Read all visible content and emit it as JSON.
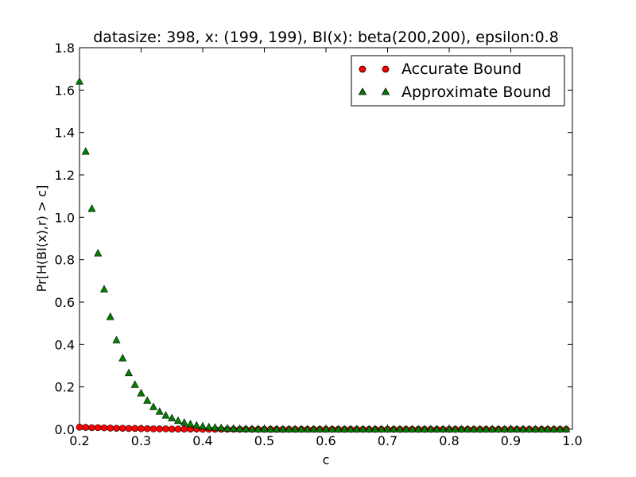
{
  "chart_data": {
    "type": "scatter",
    "title": "datasize: 398, x: (199, 199), BI(x): beta(200,200), epsilon:0.8",
    "xlabel": "c",
    "ylabel": "Pr[H(BI(x),r) > c]",
    "xlim": [
      0.2,
      1.0
    ],
    "ylim": [
      0.0,
      1.8
    ],
    "x_ticks": [
      "0.2",
      "0.3",
      "0.4",
      "0.5",
      "0.6",
      "0.7",
      "0.8",
      "0.9",
      "1.0"
    ],
    "y_ticks": [
      "0.0",
      "0.2",
      "0.4",
      "0.6",
      "0.8",
      "1.0",
      "1.2",
      "1.4",
      "1.6",
      "1.8"
    ],
    "grid": false,
    "legend_position": "top-right",
    "x": [
      0.2,
      0.21,
      0.22,
      0.23,
      0.24,
      0.25,
      0.26,
      0.27,
      0.28,
      0.29,
      0.3,
      0.31,
      0.32,
      0.33,
      0.34,
      0.35,
      0.36,
      0.37,
      0.38,
      0.39,
      0.4,
      0.41,
      0.42,
      0.43,
      0.44,
      0.45,
      0.46,
      0.47,
      0.48,
      0.49,
      0.5,
      0.51,
      0.52,
      0.53,
      0.54,
      0.55,
      0.56,
      0.57,
      0.58,
      0.59,
      0.6,
      0.61,
      0.62,
      0.63,
      0.64,
      0.65,
      0.66,
      0.67,
      0.68,
      0.69,
      0.7,
      0.71,
      0.72,
      0.73,
      0.74,
      0.75,
      0.76,
      0.77,
      0.78,
      0.79,
      0.8,
      0.81,
      0.82,
      0.83,
      0.84,
      0.85,
      0.86,
      0.87,
      0.88,
      0.89,
      0.9,
      0.91,
      0.92,
      0.93,
      0.94,
      0.95,
      0.96,
      0.97,
      0.98,
      0.99
    ],
    "series": [
      {
        "name": "Accurate Bound",
        "marker": "circle",
        "color": "#ff0000",
        "values": [
          0.01,
          0.009,
          0.008,
          0.008,
          0.007,
          0.006,
          0.005,
          0.005,
          0.004,
          0.004,
          0.003,
          0.003,
          0.002,
          0.002,
          0.002,
          0.001,
          0.001,
          0.001,
          0.001,
          0.001,
          0.0,
          0.0,
          0.0,
          0.0,
          0.0,
          0.0,
          0.0,
          0.0,
          0.0,
          0.0,
          0.0,
          0.0,
          0.0,
          0.0,
          0.0,
          0.0,
          0.0,
          0.0,
          0.0,
          0.0,
          0.0,
          0.0,
          0.0,
          0.0,
          0.0,
          0.0,
          0.0,
          0.0,
          0.0,
          0.0,
          0.0,
          0.0,
          0.0,
          0.0,
          0.0,
          0.0,
          0.0,
          0.0,
          0.0,
          0.0,
          0.0,
          0.0,
          0.0,
          0.0,
          0.0,
          0.0,
          0.0,
          0.0,
          0.0,
          0.0,
          0.0,
          0.0,
          0.0,
          0.0,
          0.0,
          0.0,
          0.0,
          0.0,
          0.0,
          0.0
        ]
      },
      {
        "name": "Approximate Bound",
        "marker": "triangle",
        "color": "#008000",
        "values": [
          1.64,
          1.31,
          1.04,
          0.83,
          0.66,
          0.53,
          0.42,
          0.335,
          0.265,
          0.21,
          0.17,
          0.135,
          0.105,
          0.083,
          0.065,
          0.052,
          0.04,
          0.031,
          0.024,
          0.018,
          0.014,
          0.01,
          0.008,
          0.006,
          0.004,
          0.003,
          0.002,
          0.0015,
          0.001,
          0.0007,
          0.0005,
          0.0003,
          0.0002,
          0.0001,
          0.0,
          0.0,
          0.0,
          0.0,
          0.0,
          0.0,
          0.0,
          0.0,
          0.0,
          0.0,
          0.0,
          0.0,
          0.0,
          0.0,
          0.0,
          0.0,
          0.0,
          0.0,
          0.0,
          0.0,
          0.0,
          0.0,
          0.0,
          0.0,
          0.0,
          0.0,
          0.0,
          0.0,
          0.0,
          0.0,
          0.0,
          0.0,
          0.0,
          0.0,
          0.0,
          0.0,
          0.0,
          0.0,
          0.0,
          0.0,
          0.0,
          0.0,
          0.0,
          0.0,
          0.0,
          0.0
        ]
      }
    ]
  }
}
